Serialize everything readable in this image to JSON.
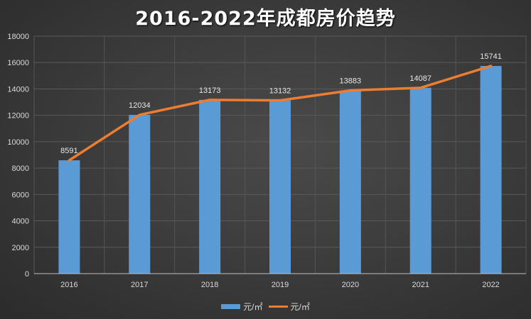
{
  "chart_data": {
    "type": "bar",
    "title": "2016-2022年成都房价趋势",
    "xlabel": "",
    "ylabel": "",
    "categories": [
      "2016",
      "2017",
      "2018",
      "2019",
      "2020",
      "2021",
      "2022"
    ],
    "series": [
      {
        "name": "元/㎡",
        "type": "bar",
        "color": "#5b9bd5",
        "values": [
          8591,
          12034,
          13173,
          13132,
          13883,
          14087,
          15741
        ]
      },
      {
        "name": "元/㎡",
        "type": "line",
        "color": "#ed7d31",
        "values": [
          8591,
          12034,
          13173,
          13132,
          13883,
          14087,
          15741
        ]
      }
    ],
    "data_labels": [
      "8591",
      "12034",
      "13173",
      "13132",
      "13883",
      "14087",
      "15741"
    ],
    "ylim": [
      0,
      18000
    ],
    "yticks": [
      "0",
      "2000",
      "4000",
      "6000",
      "8000",
      "10000",
      "12000",
      "14000",
      "16000",
      "18000"
    ],
    "grid": true,
    "legend_position": "bottom"
  },
  "legend": {
    "bar_label": "元/㎡",
    "line_label": "元/㎡"
  }
}
